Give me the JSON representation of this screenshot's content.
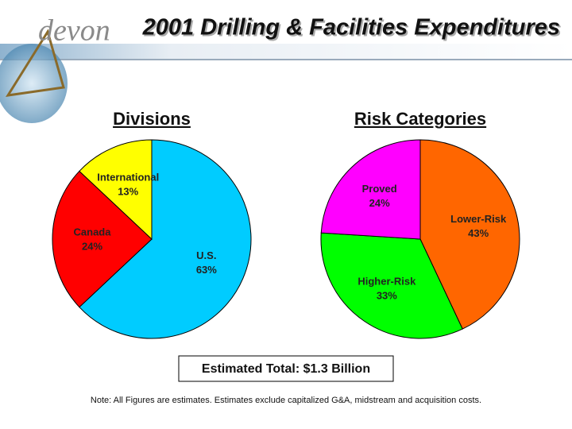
{
  "header": {
    "logo": "devon",
    "title": "2001 Drilling & Facilities Expenditures"
  },
  "chart_data": [
    {
      "type": "pie",
      "title": "Divisions",
      "categories": [
        "U.S.",
        "Canada",
        "International"
      ],
      "values": [
        63,
        24,
        13
      ],
      "value_labels": [
        "63%",
        "24%",
        "13%"
      ],
      "colors": [
        "#00ccff",
        "#ff0000",
        "#ffff00"
      ]
    },
    {
      "type": "pie",
      "title": "Risk Categories",
      "categories": [
        "Lower-Risk",
        "Higher-Risk",
        "Proved"
      ],
      "values": [
        43,
        33,
        24
      ],
      "value_labels": [
        "43%",
        "33%",
        "24%"
      ],
      "colors": [
        "#ff6600",
        "#00ff00",
        "#ff00ff"
      ]
    }
  ],
  "total": "Estimated Total:  $1.3 Billion",
  "note": "Note: All Figures are estimates.  Estimates exclude capitalized G&A, midstream and acquisition costs."
}
